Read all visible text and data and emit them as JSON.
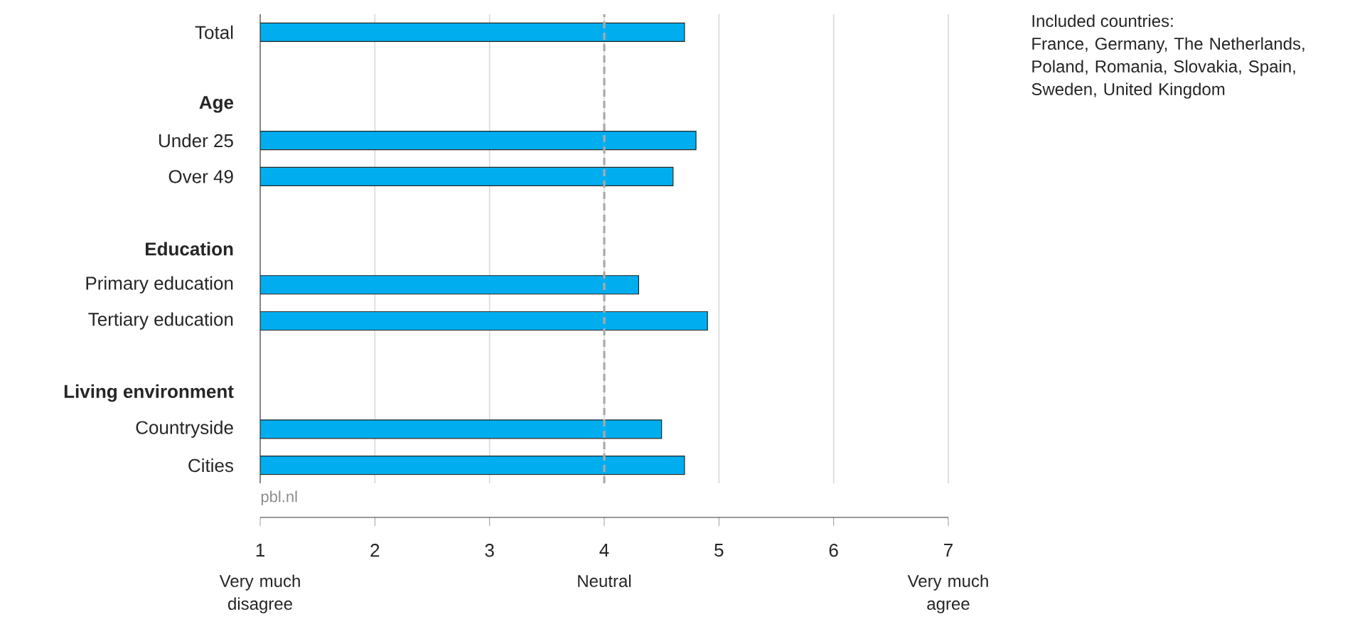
{
  "chart_data": {
    "type": "bar",
    "orientation": "horizontal",
    "categories": [
      "Total",
      null,
      "Age",
      "Under 25",
      "Over 49",
      null,
      "Education",
      "Primary education",
      "Tertiary education",
      null,
      "Living environment",
      "Countryside",
      "Cities"
    ],
    "values": [
      4.7,
      null,
      null,
      4.8,
      4.6,
      null,
      null,
      4.3,
      4.9,
      null,
      null,
      4.5,
      4.7
    ],
    "color": "#00aeef",
    "xlim": [
      1,
      7
    ],
    "xticks": [
      1,
      2,
      3,
      4,
      5,
      6,
      7
    ],
    "grid": "x",
    "ref_lines": [
      {
        "axis": "x",
        "value": 4,
        "color": "#aaaaaa",
        "line_style": "dashed"
      }
    ],
    "annotations": [
      "Included countries:",
      "France, Germany, The Netherlands, Poland, Romania, Slovakia, Spain, Sweden, United Kingdom",
      "pbl.nl",
      "Very much disagree",
      "Neutral",
      "Very much agree"
    ]
  }
}
